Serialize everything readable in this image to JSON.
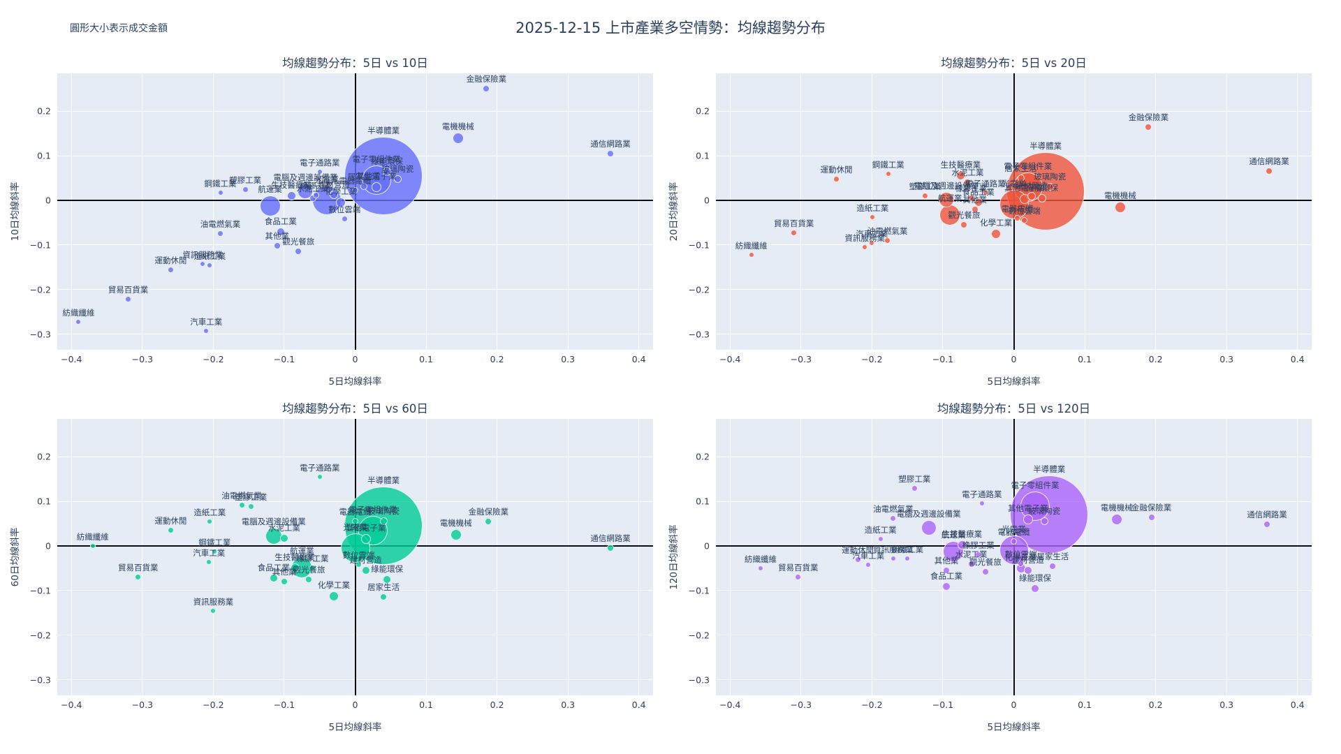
{
  "header": {
    "title": "2025-12-15 上市產業多空情勢：均線趨勢分布",
    "annotation": "圓形大小表示成交金額"
  },
  "axes": {
    "x_range": [
      -0.42,
      0.42
    ],
    "y_range": [
      -0.335,
      0.285
    ],
    "xticks": [
      -0.4,
      -0.3,
      -0.2,
      -0.1,
      0,
      0.1,
      0.2,
      0.3,
      0.4
    ],
    "yticks": [
      0.2,
      0.1,
      0,
      -0.1,
      -0.2,
      -0.3
    ],
    "grid": true
  },
  "chart_data": [
    {
      "type": "scatter",
      "title": "均線趨勢分布：5日 vs 10日",
      "xlabel": "5日均線斜率",
      "ylabel": "10日均線斜率",
      "color": "#636EFA",
      "size_meaning": "成交金額",
      "points": [
        {
          "name": "半導體業",
          "x": 0.04,
          "y": 0.055,
          "size": 112
        },
        {
          "name": "電子零組件業",
          "x": 0.03,
          "y": 0.045,
          "size": 42
        },
        {
          "name": "光電業",
          "x": -0.04,
          "y": 0.0,
          "size": 42
        },
        {
          "name": "航運業",
          "x": -0.12,
          "y": -0.013,
          "size": 30
        },
        {
          "name": "電腦及週邊設備業",
          "x": -0.07,
          "y": 0.02,
          "size": 22
        },
        {
          "name": "電機機械",
          "x": 0.145,
          "y": 0.14,
          "size": 16
        },
        {
          "name": "其他電子業",
          "x": 0.03,
          "y": 0.03,
          "size": 14
        },
        {
          "name": "化學工業",
          "x": -0.02,
          "y": -0.005,
          "size": 14
        },
        {
          "name": "生技醫療業",
          "x": -0.09,
          "y": 0.01,
          "size": 13
        },
        {
          "name": "金融保險業",
          "x": 0.185,
          "y": 0.25,
          "size": 10
        },
        {
          "name": "通信網路業",
          "x": 0.36,
          "y": 0.105,
          "size": 10
        },
        {
          "name": "綠能環保",
          "x": 0.045,
          "y": 0.065,
          "size": 12
        },
        {
          "name": "玻璃陶瓷",
          "x": 0.06,
          "y": 0.048,
          "size": 11
        },
        {
          "name": "建材營造",
          "x": -0.03,
          "y": 0.012,
          "size": 12
        },
        {
          "name": "居家生活",
          "x": 0.012,
          "y": 0.032,
          "size": 10
        },
        {
          "name": "電器電纜",
          "x": 0.0,
          "y": 0.022,
          "size": 9
        },
        {
          "name": "數位雲端",
          "x": -0.015,
          "y": -0.042,
          "size": 9
        },
        {
          "name": "橡膠工業",
          "x": -0.055,
          "y": 0.012,
          "size": 9
        },
        {
          "name": "水泥工業",
          "x": -0.06,
          "y": 0.005,
          "size": 10
        },
        {
          "name": "塑膠工業",
          "x": -0.155,
          "y": 0.025,
          "size": 9
        },
        {
          "name": "鋼鐵工業",
          "x": -0.19,
          "y": 0.018,
          "size": 8
        },
        {
          "name": "食品工業",
          "x": -0.105,
          "y": -0.07,
          "size": 12
        },
        {
          "name": "其他業",
          "x": -0.11,
          "y": -0.102,
          "size": 10
        },
        {
          "name": "觀光餐旅",
          "x": -0.08,
          "y": -0.115,
          "size": 10
        },
        {
          "name": "油電燃氣業",
          "x": -0.19,
          "y": -0.075,
          "size": 9
        },
        {
          "name": "電子通路業",
          "x": -0.05,
          "y": 0.065,
          "size": 8
        },
        {
          "name": "資訊服務業",
          "x": -0.215,
          "y": -0.142,
          "size": 8
        },
        {
          "name": "造紙工業",
          "x": -0.205,
          "y": -0.145,
          "size": 8
        },
        {
          "name": "運動休閒",
          "x": -0.26,
          "y": -0.155,
          "size": 9
        },
        {
          "name": "貿易百貨業",
          "x": -0.32,
          "y": -0.222,
          "size": 9
        },
        {
          "name": "紡織纖維",
          "x": -0.39,
          "y": -0.272,
          "size": 8
        },
        {
          "name": "汽車工業",
          "x": -0.21,
          "y": -0.292,
          "size": 8
        }
      ]
    },
    {
      "type": "scatter",
      "title": "均線趨勢分布：5日 vs 20日",
      "xlabel": "5日均線斜率",
      "ylabel": "20日均線斜率",
      "color": "#EF553B",
      "size_meaning": "成交金額",
      "points": [
        {
          "name": "半導體業",
          "x": 0.045,
          "y": 0.02,
          "size": 112
        },
        {
          "name": "電子零組件業",
          "x": 0.02,
          "y": 0.03,
          "size": 42
        },
        {
          "name": "光電業",
          "x": 0.0,
          "y": -0.01,
          "size": 42
        },
        {
          "name": "航運業",
          "x": -0.09,
          "y": -0.033,
          "size": 30
        },
        {
          "name": "電腦及週邊設備業",
          "x": -0.095,
          "y": 0.002,
          "size": 22
        },
        {
          "name": "電機機械",
          "x": 0.15,
          "y": -0.016,
          "size": 16
        },
        {
          "name": "其他電子業",
          "x": 0.015,
          "y": 0.003,
          "size": 14
        },
        {
          "name": "化學工業",
          "x": -0.025,
          "y": -0.075,
          "size": 14
        },
        {
          "name": "生技醫療業",
          "x": -0.075,
          "y": 0.055,
          "size": 13
        },
        {
          "name": "金融保險業",
          "x": 0.19,
          "y": 0.165,
          "size": 10
        },
        {
          "name": "通信網路業",
          "x": 0.36,
          "y": 0.066,
          "size": 10
        },
        {
          "name": "綠能環保",
          "x": 0.04,
          "y": 0.005,
          "size": 12
        },
        {
          "name": "玻璃陶瓷",
          "x": 0.051,
          "y": 0.031,
          "size": 11
        },
        {
          "name": "建材營造",
          "x": 0.025,
          "y": 0.01,
          "size": 12
        },
        {
          "name": "居家生活",
          "x": 0.01,
          "y": 0.05,
          "size": 10
        },
        {
          "name": "電器電纜",
          "x": 0.005,
          "y": -0.04,
          "size": 9
        },
        {
          "name": "數位雲端",
          "x": 0.015,
          "y": -0.045,
          "size": 9
        },
        {
          "name": "橡膠工業",
          "x": -0.06,
          "y": 0.005,
          "size": 9
        },
        {
          "name": "水泥工業",
          "x": -0.065,
          "y": 0.04,
          "size": 10
        },
        {
          "name": "塑膠工業",
          "x": -0.125,
          "y": 0.01,
          "size": 9
        },
        {
          "name": "鋼鐵工業",
          "x": -0.177,
          "y": 0.06,
          "size": 8
        },
        {
          "name": "食品工業",
          "x": -0.05,
          "y": -0.005,
          "size": 12
        },
        {
          "name": "其他業",
          "x": -0.055,
          "y": -0.02,
          "size": 10
        },
        {
          "name": "觀光餐旅",
          "x": -0.07,
          "y": -0.055,
          "size": 10
        },
        {
          "name": "油電燃氣業",
          "x": -0.178,
          "y": -0.09,
          "size": 9
        },
        {
          "name": "電子通路業",
          "x": -0.04,
          "y": 0.018,
          "size": 8
        },
        {
          "name": "資訊服務業",
          "x": -0.21,
          "y": -0.105,
          "size": 8
        },
        {
          "name": "造紙工業",
          "x": -0.199,
          "y": -0.038,
          "size": 8
        },
        {
          "name": "運動休閒",
          "x": -0.25,
          "y": 0.048,
          "size": 9
        },
        {
          "name": "貿易百貨業",
          "x": -0.31,
          "y": -0.073,
          "size": 9
        },
        {
          "name": "紡織纖維",
          "x": -0.37,
          "y": -0.122,
          "size": 8
        },
        {
          "name": "汽車工業",
          "x": -0.2,
          "y": -0.096,
          "size": 8
        }
      ]
    },
    {
      "type": "scatter",
      "title": "均線趨勢分布：5日 vs 60日",
      "xlabel": "5日均線斜率",
      "ylabel": "60日均線斜率",
      "color": "#00CC96",
      "size_meaning": "成交金額",
      "points": [
        {
          "name": "半導體業",
          "x": 0.04,
          "y": 0.045,
          "size": 112
        },
        {
          "name": "電子零組件業",
          "x": 0.025,
          "y": 0.035,
          "size": 42
        },
        {
          "name": "光電業",
          "x": 0.0,
          "y": -0.005,
          "size": 42
        },
        {
          "name": "航運業",
          "x": -0.075,
          "y": -0.048,
          "size": 30
        },
        {
          "name": "電腦及週邊設備業",
          "x": -0.115,
          "y": 0.022,
          "size": 24
        },
        {
          "name": "電機機械",
          "x": 0.142,
          "y": 0.025,
          "size": 16
        },
        {
          "name": "其他電子業",
          "x": 0.015,
          "y": 0.015,
          "size": 14
        },
        {
          "name": "化學工業",
          "x": -0.03,
          "y": -0.113,
          "size": 14
        },
        {
          "name": "生技醫療業",
          "x": -0.085,
          "y": -0.05,
          "size": 13
        },
        {
          "name": "金融保險業",
          "x": 0.188,
          "y": 0.055,
          "size": 10
        },
        {
          "name": "通信網路業",
          "x": 0.36,
          "y": -0.005,
          "size": 10
        },
        {
          "name": "綠能環保",
          "x": 0.045,
          "y": -0.075,
          "size": 12
        },
        {
          "name": "玻璃陶瓷",
          "x": 0.04,
          "y": 0.055,
          "size": 11
        },
        {
          "name": "建材營造",
          "x": 0.015,
          "y": -0.055,
          "size": 12
        },
        {
          "name": "居家生活",
          "x": 0.04,
          "y": -0.115,
          "size": 10
        },
        {
          "name": "電器電纜",
          "x": 0.0,
          "y": 0.055,
          "size": 9
        },
        {
          "name": "數位雲端",
          "x": 0.005,
          "y": -0.042,
          "size": 9
        },
        {
          "name": "橡膠工業",
          "x": -0.06,
          "y": -0.05,
          "size": 9
        },
        {
          "name": "水泥工業",
          "x": -0.1,
          "y": 0.018,
          "size": 12
        },
        {
          "name": "塑膠工業",
          "x": -0.147,
          "y": 0.088,
          "size": 9
        },
        {
          "name": "鋼鐵工業",
          "x": -0.198,
          "y": -0.012,
          "size": 8
        },
        {
          "name": "食品工業",
          "x": -0.115,
          "y": -0.072,
          "size": 12
        },
        {
          "name": "其他業",
          "x": -0.1,
          "y": -0.08,
          "size": 10
        },
        {
          "name": "觀光餐旅",
          "x": -0.065,
          "y": -0.075,
          "size": 10
        },
        {
          "name": "油電燃氣業",
          "x": -0.16,
          "y": 0.092,
          "size": 9
        },
        {
          "name": "電子通路業",
          "x": -0.05,
          "y": 0.155,
          "size": 8
        },
        {
          "name": "資訊服務業",
          "x": -0.2,
          "y": -0.145,
          "size": 8
        },
        {
          "name": "造紙工業",
          "x": -0.205,
          "y": 0.055,
          "size": 8
        },
        {
          "name": "運動休閒",
          "x": -0.26,
          "y": 0.035,
          "size": 9
        },
        {
          "name": "貿易百貨業",
          "x": -0.306,
          "y": -0.069,
          "size": 9
        },
        {
          "name": "紡織纖維",
          "x": -0.37,
          "y": 0.0,
          "size": 8
        },
        {
          "name": "汽車工業",
          "x": -0.206,
          "y": -0.036,
          "size": 8
        }
      ]
    },
    {
      "type": "scatter",
      "title": "均線趨勢分布：5日 vs 120日",
      "xlabel": "5日均線斜率",
      "ylabel": "120日均線斜率",
      "color": "#AB63FA",
      "size_meaning": "成交金額",
      "points": [
        {
          "name": "半導體業",
          "x": 0.05,
          "y": 0.07,
          "size": 112
        },
        {
          "name": "電子零組件業",
          "x": 0.03,
          "y": 0.09,
          "size": 42
        },
        {
          "name": "光電業",
          "x": 0.0,
          "y": -0.01,
          "size": 42
        },
        {
          "name": "航運業",
          "x": -0.085,
          "y": -0.012,
          "size": 30
        },
        {
          "name": "電腦及週邊設備業",
          "x": -0.12,
          "y": 0.04,
          "size": 22
        },
        {
          "name": "電機機械",
          "x": 0.145,
          "y": 0.06,
          "size": 16
        },
        {
          "name": "其他電子業",
          "x": 0.02,
          "y": 0.06,
          "size": 14
        },
        {
          "name": "化學工業",
          "x": 0.01,
          "y": -0.05,
          "size": 14
        },
        {
          "name": "生技醫療業",
          "x": -0.073,
          "y": 0.003,
          "size": 13
        },
        {
          "name": "金融保險業",
          "x": 0.194,
          "y": 0.065,
          "size": 10
        },
        {
          "name": "通信網路業",
          "x": 0.357,
          "y": 0.048,
          "size": 10
        },
        {
          "name": "綠能環保",
          "x": 0.03,
          "y": -0.095,
          "size": 12
        },
        {
          "name": "玻璃陶瓷",
          "x": 0.043,
          "y": 0.056,
          "size": 11
        },
        {
          "name": "建材營造",
          "x": 0.02,
          "y": -0.055,
          "size": 12
        },
        {
          "name": "居家生活",
          "x": 0.055,
          "y": -0.045,
          "size": 10
        },
        {
          "name": "電器電纜",
          "x": 0.0,
          "y": 0.01,
          "size": 9
        },
        {
          "name": "數位雲端",
          "x": 0.01,
          "y": -0.04,
          "size": 9
        },
        {
          "name": "橡膠工業",
          "x": -0.05,
          "y": -0.02,
          "size": 9
        },
        {
          "name": "水泥工業",
          "x": -0.06,
          "y": -0.04,
          "size": 10
        },
        {
          "name": "塑膠工業",
          "x": -0.14,
          "y": 0.13,
          "size": 9
        },
        {
          "name": "鋼鐵工業",
          "x": -0.15,
          "y": -0.028,
          "size": 8
        },
        {
          "name": "食品工業",
          "x": -0.095,
          "y": -0.09,
          "size": 12
        },
        {
          "name": "其他業",
          "x": -0.095,
          "y": -0.055,
          "size": 10
        },
        {
          "name": "觀光餐旅",
          "x": -0.04,
          "y": -0.058,
          "size": 10
        },
        {
          "name": "油電燃氣業",
          "x": -0.17,
          "y": 0.062,
          "size": 9
        },
        {
          "name": "電子通路業",
          "x": -0.045,
          "y": 0.095,
          "size": 8
        },
        {
          "name": "資訊服務業",
          "x": -0.17,
          "y": -0.028,
          "size": 8
        },
        {
          "name": "造紙工業",
          "x": -0.188,
          "y": 0.016,
          "size": 8
        },
        {
          "name": "運動休閒",
          "x": -0.22,
          "y": -0.03,
          "size": 9
        },
        {
          "name": "貿易百貨業",
          "x": -0.304,
          "y": -0.07,
          "size": 9
        },
        {
          "name": "紡織纖維",
          "x": -0.357,
          "y": -0.05,
          "size": 8
        },
        {
          "name": "汽車工業",
          "x": -0.205,
          "y": -0.042,
          "size": 8
        }
      ]
    }
  ]
}
